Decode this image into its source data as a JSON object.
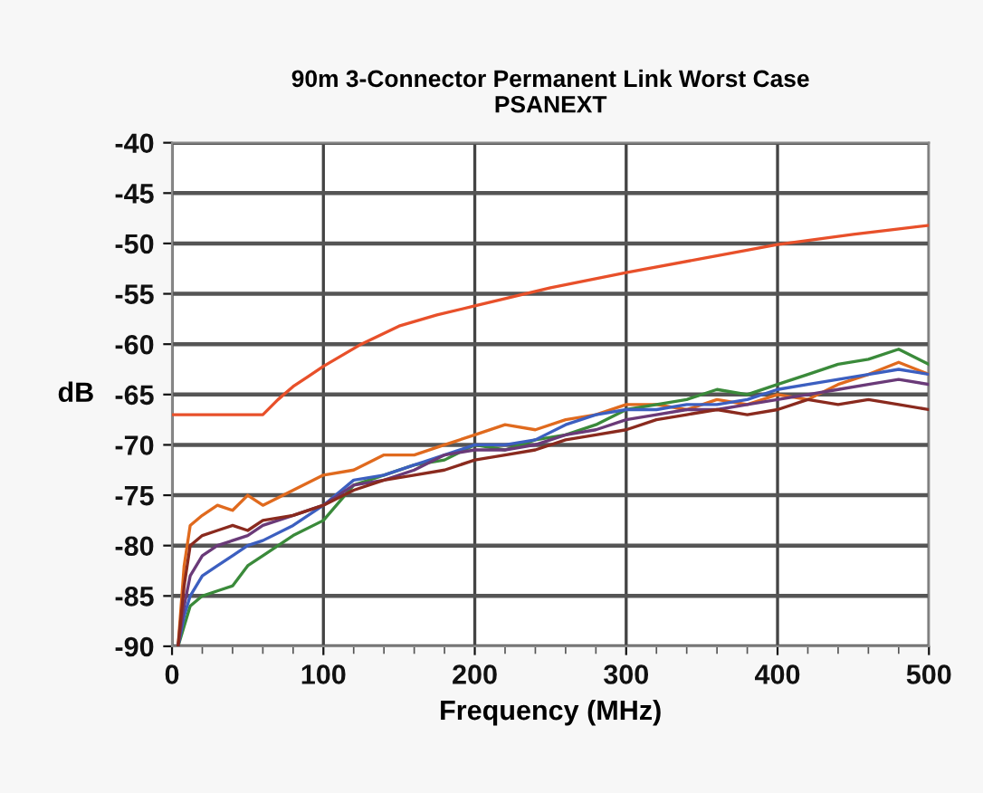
{
  "chart_data": {
    "type": "line",
    "title": "90m 3-Connector Permanent Link Worst Case\nPSANEXT",
    "xlabel": "Frequency (MHz)",
    "ylabel": "dB",
    "xlim": [
      0,
      500
    ],
    "ylim": [
      -90,
      -40
    ],
    "xticks": [
      0,
      {
        "value": 20,
        "label": null
      },
      {
        "value": 40,
        "label": null
      },
      {
        "value": 60,
        "label": null
      },
      {
        "value": 80,
        "label": null
      },
      100,
      {
        "value": 120,
        "label": null
      },
      {
        "value": 140,
        "label": null
      },
      {
        "value": 160,
        "label": null
      },
      {
        "value": 180,
        "label": null
      },
      200,
      {
        "value": 220,
        "label": null
      },
      {
        "value": 240,
        "label": null
      },
      {
        "value": 260,
        "label": null
      },
      {
        "value": 280,
        "label": null
      },
      300,
      {
        "value": 320,
        "label": null
      },
      {
        "value": 340,
        "label": null
      },
      {
        "value": 360,
        "label": null
      },
      {
        "value": 380,
        "label": null
      },
      400,
      {
        "value": 420,
        "label": null
      },
      {
        "value": 440,
        "label": null
      },
      {
        "value": 460,
        "label": null
      },
      {
        "value": 480,
        "label": null
      },
      500
    ],
    "yticks": [
      -90,
      -85,
      -80,
      -75,
      -70,
      -65,
      -60,
      -55,
      -50,
      -45,
      -40
    ],
    "grid": true,
    "legend": false,
    "marker": "none",
    "line_style": "solid",
    "x": [
      4,
      8,
      12,
      20,
      30,
      40,
      50,
      60,
      80,
      100,
      120,
      140,
      160,
      180,
      200,
      220,
      240,
      260,
      280,
      300,
      320,
      340,
      360,
      380,
      400,
      420,
      440,
      460,
      480,
      500
    ],
    "series": [
      {
        "color": "#e06a1e",
        "values": [
          -90,
          -82,
          -78,
          -77,
          -76,
          -76.5,
          -75,
          -76,
          -74.5,
          -73,
          -72.5,
          -71,
          -71,
          -70,
          -69,
          -68,
          -68.5,
          -67.5,
          -67,
          -66,
          -66,
          -66.5,
          -65.5,
          -66,
          -65,
          -65.5,
          -64,
          -63,
          -61.8,
          -63
        ]
      },
      {
        "color": "#3a8a3a",
        "values": [
          -90,
          -88,
          -86,
          -85,
          -84.5,
          -84,
          -82,
          -81,
          -79,
          -77.5,
          -74,
          -73,
          -72,
          -71.5,
          -70,
          -70.5,
          -69.5,
          -69,
          -68,
          -66.5,
          -66,
          -65.5,
          -64.5,
          -65,
          -64,
          -63,
          -62,
          -61.5,
          -60.5,
          -62
        ]
      },
      {
        "color": "#3c5fc0",
        "values": [
          -90,
          -87,
          -85,
          -83,
          -82,
          -81,
          -80,
          -79.5,
          -78,
          -76,
          -73.5,
          -73,
          -72,
          -71,
          -70,
          -70,
          -69.5,
          -68,
          -67,
          -66.5,
          -66.5,
          -66,
          -66,
          -65.5,
          -64.5,
          -64,
          -63.5,
          -63,
          -62.5,
          -63
        ]
      },
      {
        "color": "#6a3a78",
        "values": [
          -90,
          -86,
          -83,
          -81,
          -80,
          -79.5,
          -79,
          -78,
          -77,
          -76,
          -74,
          -73.5,
          -72.5,
          -71,
          -70.5,
          -70.5,
          -70,
          -69,
          -68.5,
          -67.5,
          -67,
          -66.5,
          -66.5,
          -66,
          -65.5,
          -65,
          -64.5,
          -64,
          -63.5,
          -64
        ]
      },
      {
        "color": "#8a2a1e",
        "values": [
          -90,
          -84,
          -80,
          -79,
          -78.5,
          -78,
          -78.5,
          -77.5,
          -77,
          -76,
          -74.5,
          -73.5,
          -73,
          -72.5,
          -71.5,
          -71,
          -70.5,
          -69.5,
          -69,
          -68.5,
          -67.5,
          -67,
          -66.5,
          -67,
          -66.5,
          -65.5,
          -66,
          -65.5,
          -66,
          -66.5
        ]
      },
      {
        "color": "#e8502a",
        "x": [
          0,
          60,
          70,
          80,
          90,
          100,
          125,
          150,
          175,
          200,
          250,
          300,
          350,
          400,
          450,
          500
        ],
        "values": [
          -67,
          -67,
          -65.5,
          -64.2,
          -63.2,
          -62.2,
          -60,
          -58.2,
          -57.1,
          -56.2,
          -54.4,
          -52.9,
          -51.5,
          -50.1,
          -49.1,
          -48.2
        ]
      }
    ]
  }
}
